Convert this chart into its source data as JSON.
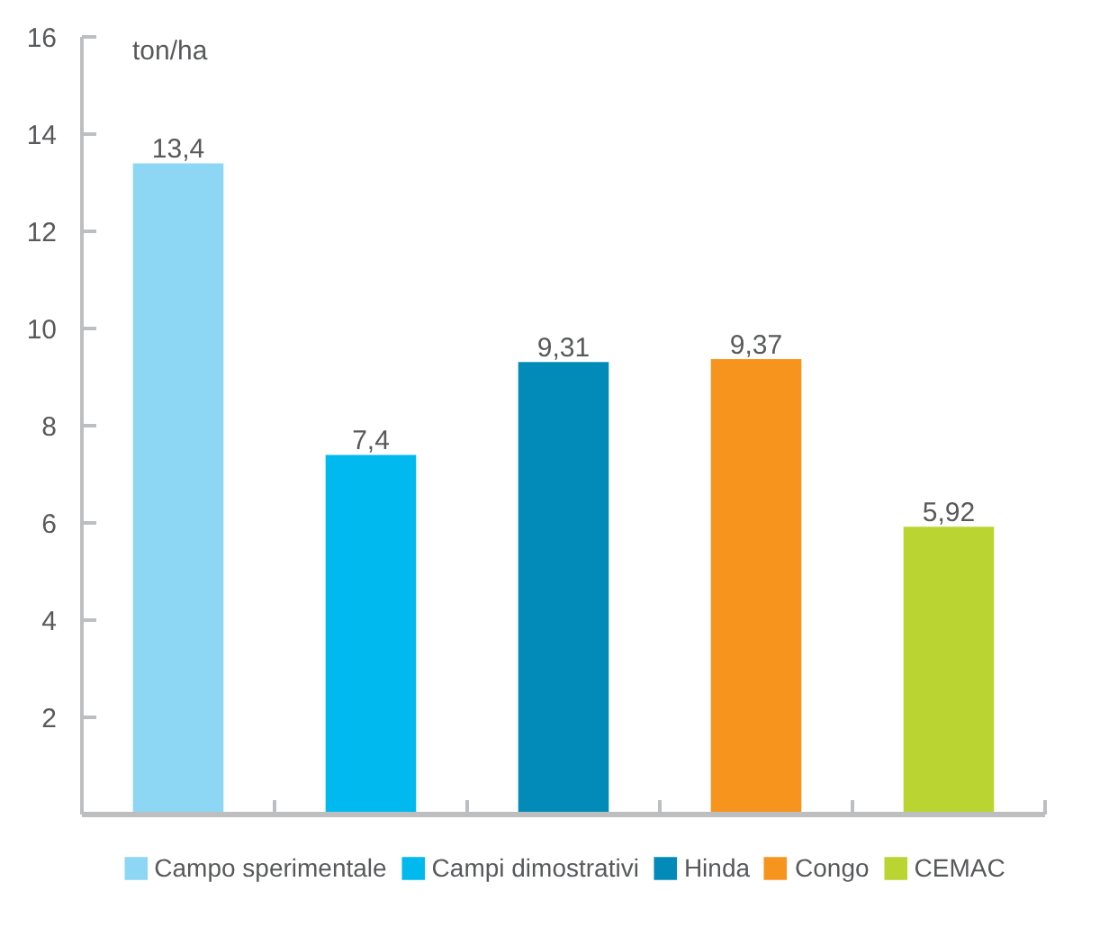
{
  "chart_data": {
    "type": "bar",
    "ylabel": "ton/ha",
    "categories": [
      null,
      null,
      null,
      null,
      null
    ],
    "series": [
      {
        "name": "Campo sperimentale",
        "color": "#8dd7f5",
        "values": [
          13.4,
          null,
          null,
          null,
          null
        ],
        "value_labels": [
          "13,4",
          null,
          null,
          null,
          null
        ]
      },
      {
        "name": "Campi dimostrativi",
        "color": "#00b9ef",
        "values": [
          null,
          7.4,
          null,
          null,
          null
        ],
        "value_labels": [
          null,
          "7,4",
          null,
          null,
          null
        ]
      },
      {
        "name": "Hinda",
        "color": "#028bb8",
        "values": [
          null,
          null,
          9.31,
          null,
          null
        ],
        "value_labels": [
          null,
          null,
          "9,31",
          null,
          null
        ]
      },
      {
        "name": "Congo",
        "color": "#f7941d",
        "values": [
          null,
          null,
          null,
          9.37,
          null
        ],
        "value_labels": [
          null,
          null,
          null,
          "9,37",
          null
        ]
      },
      {
        "name": "CEMAC",
        "color": "#bad532",
        "values": [
          null,
          null,
          null,
          null,
          5.92
        ],
        "value_labels": [
          null,
          null,
          null,
          null,
          "5,92"
        ]
      }
    ],
    "ylim": [
      0,
      16
    ],
    "yticks": [
      {
        "value": 0,
        "label": null
      },
      2,
      4,
      6,
      8,
      10,
      12,
      14,
      16
    ],
    "grid": false,
    "legend": "bottom"
  }
}
